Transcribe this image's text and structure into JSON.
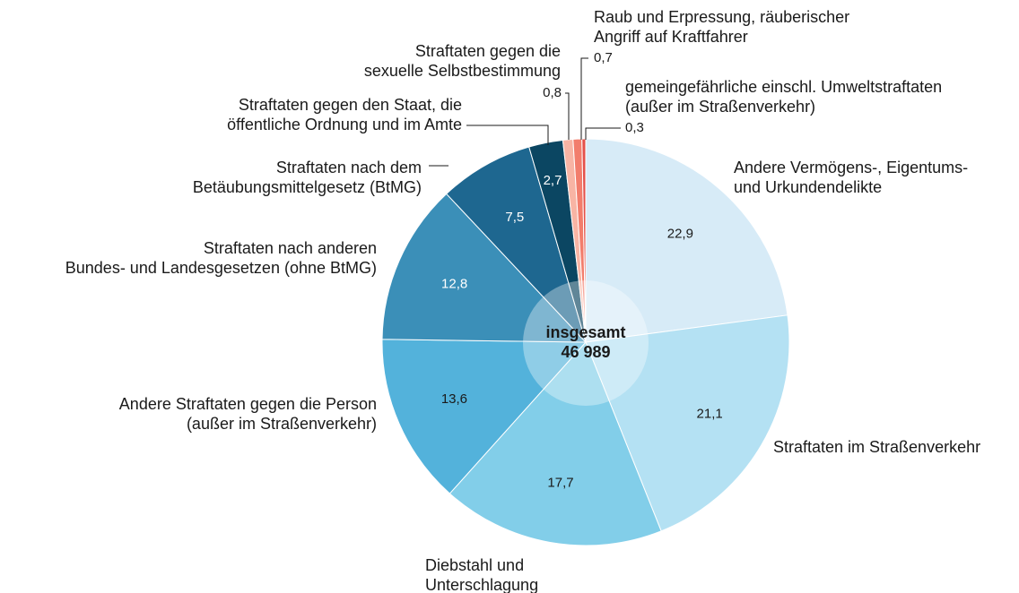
{
  "chart_data": {
    "type": "pie",
    "categories": [
      [
        "Andere Vermögens-, Eigentums-",
        "und Urkundendelikte"
      ],
      [
        "Straftaten im Straßenverkehr"
      ],
      [
        "Diebstahl und",
        "Unterschlagung"
      ],
      [
        "Andere Straftaten gegen die Person",
        "(außer im Straßenverkehr)"
      ],
      [
        "Straftaten nach anderen",
        "Bundes- und Landesgesetzen (ohne BtMG)"
      ],
      [
        "Straftaten nach dem",
        "Betäubungsmittelgesetz (BtMG)"
      ],
      [
        "Straftaten gegen den Staat, die",
        "öffentliche Ordnung und im Amte"
      ],
      [
        "Straftaten gegen die",
        "sexuelle Selbstbestimmung"
      ],
      [
        "Raub und Erpressung, räuberischer",
        "Angriff auf Kraftfahrer"
      ],
      [
        "gemeingefährliche einschl. Umweltstraftaten",
        "(außer im Straßenverkehr)"
      ]
    ],
    "values": [
      22.9,
      21.1,
      17.7,
      13.6,
      12.8,
      7.5,
      2.7,
      0.8,
      0.7,
      0.3
    ],
    "value_labels": [
      "22,9",
      "21,1",
      "17,7",
      "13,6",
      "12,8",
      "7,5",
      "2,7",
      "0,8",
      "0,7",
      "0,3"
    ],
    "colors": [
      "#d7ebf7",
      "#b4e1f3",
      "#82cee9",
      "#53b2db",
      "#3b8fb8",
      "#1e6790",
      "#0b4662",
      "#f8b4a4",
      "#f27d6c",
      "#e4504a"
    ],
    "center_title": "insgesamt",
    "center_value": "46 989"
  }
}
